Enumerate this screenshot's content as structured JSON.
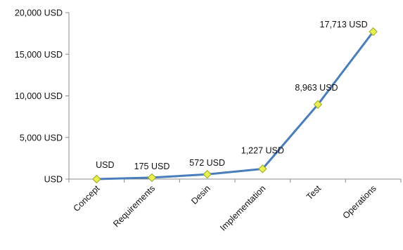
{
  "chart_data": {
    "type": "line",
    "title": "",
    "xlabel": "",
    "ylabel": "",
    "categories": [
      "Concept",
      "Requirements",
      "Desin",
      "Implementation",
      "Test",
      "Operations"
    ],
    "series": [
      {
        "values": [
          0,
          175,
          572,
          1227,
          8963,
          17713
        ],
        "labels": [
          "USD",
          "175 USD",
          "572 USD",
          "1,227 USD",
          "8,963 USD",
          "17,713 USD"
        ]
      }
    ],
    "ylim": [
      0,
      20000
    ],
    "yticks": [
      0,
      5000,
      10000,
      15000,
      20000
    ],
    "ytick_labels": [
      "USD",
      "5,000 USD",
      "10,000 USD",
      "15,000 USD",
      "20,000 USD"
    ],
    "grid": false,
    "legend": "none",
    "colors": {
      "line": "#4a7ebb",
      "marker_fill": "#e8f050",
      "marker_stroke": "#9aa628",
      "axis": "#8c8c8c"
    }
  }
}
